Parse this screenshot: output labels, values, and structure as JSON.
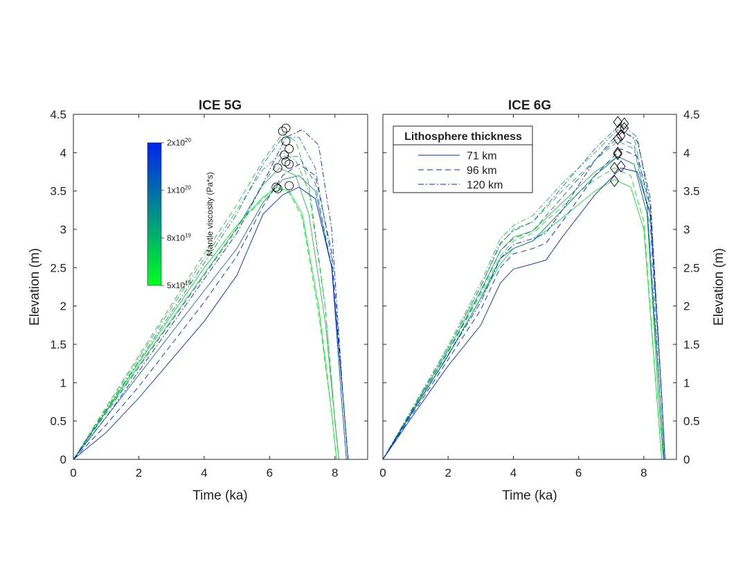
{
  "chart_data": [
    {
      "type": "line",
      "title": "ICE 5G",
      "xlabel": "Time (ka)",
      "ylabel": "Elevation (m)",
      "xlim": [
        0,
        9
      ],
      "ylim": [
        0,
        4.5
      ],
      "xticks": [
        "0",
        "2",
        "4",
        "6",
        "8"
      ],
      "yticks": [
        "0",
        "0.5",
        "1",
        "1.5",
        "2",
        "2.5",
        "3",
        "3.5",
        "4",
        "4.5"
      ],
      "peak_marker": "circle",
      "colorbar": {
        "label": "Mantle viscosity (Pa*s)",
        "ticks": [
          {
            "base": "2x10",
            "exp": "20"
          },
          {
            "base": "1x10",
            "exp": "20"
          },
          {
            "base": "8x10",
            "exp": "19"
          },
          {
            "base": "5x10",
            "exp": "19"
          }
        ],
        "colors": [
          "#0022ee",
          "#00ff22"
        ]
      },
      "series": [
        {
          "viscosity": "5x10^19",
          "thickness": "71 km",
          "style": "solid",
          "color": "#00ee22",
          "x": [
            0,
            1,
            2,
            3,
            4,
            5,
            5.8,
            6.2,
            6.6,
            7.0,
            7.5,
            7.9,
            8.05
          ],
          "y": [
            0,
            0.63,
            1.26,
            1.88,
            2.5,
            3.05,
            3.42,
            3.55,
            3.5,
            3.2,
            2.0,
            0.6,
            0
          ]
        },
        {
          "viscosity": "5x10^19",
          "thickness": "96 km",
          "style": "dashed",
          "color": "#00ee22",
          "x": [
            0,
            1,
            2,
            3,
            4,
            5,
            5.8,
            6.2,
            6.6,
            7.0,
            7.5,
            7.9,
            8.05
          ],
          "y": [
            0,
            0.63,
            1.26,
            1.88,
            2.5,
            3.05,
            3.4,
            3.54,
            3.48,
            3.15,
            1.9,
            0.6,
            0
          ]
        },
        {
          "viscosity": "8x10^19",
          "thickness": "71 km",
          "style": "solid",
          "color": "#22bb44",
          "x": [
            0,
            1,
            2,
            3,
            4,
            5,
            5.8,
            6.3,
            6.8,
            7.2,
            7.7,
            8.0,
            8.12
          ],
          "y": [
            0,
            0.62,
            1.22,
            1.82,
            2.42,
            3.02,
            3.58,
            3.8,
            3.7,
            3.2,
            1.8,
            0.5,
            0
          ]
        },
        {
          "viscosity": "8x10^19",
          "thickness": "120 km",
          "style": "dashdot",
          "color": "#22bb44",
          "x": [
            0,
            1,
            2,
            3,
            4,
            5,
            5.8,
            6.4,
            6.8,
            7.2,
            7.7,
            8.0,
            8.12
          ],
          "y": [
            0,
            0.66,
            1.32,
            1.98,
            2.62,
            3.25,
            3.78,
            4.0,
            3.9,
            3.5,
            2.0,
            0.5,
            0
          ]
        },
        {
          "viscosity": "8x10^19",
          "thickness": "96 km",
          "style": "dashed",
          "color": "#22bb44",
          "x": [
            0,
            1,
            2,
            3,
            4,
            5,
            5.8,
            6.4,
            6.8,
            7.2,
            7.7,
            8.0,
            8.12
          ],
          "y": [
            0,
            0.68,
            1.35,
            2.02,
            2.68,
            3.32,
            3.9,
            4.25,
            4.15,
            3.6,
            2.0,
            0.5,
            0
          ]
        },
        {
          "viscosity": "1x10^20",
          "thickness": "71 km",
          "style": "solid",
          "color": "#11778c",
          "x": [
            0,
            1,
            2,
            3,
            4,
            5,
            5.8,
            6.4,
            6.9,
            7.4,
            7.9,
            8.2,
            8.35
          ],
          "y": [
            0,
            0.55,
            1.1,
            1.65,
            2.2,
            2.75,
            3.35,
            3.65,
            3.7,
            3.5,
            2.5,
            0.8,
            0
          ]
        },
        {
          "viscosity": "1x10^20",
          "thickness": "96 km",
          "style": "dashed",
          "color": "#11778c",
          "x": [
            0,
            1,
            2,
            3,
            4,
            5,
            5.8,
            6.4,
            6.9,
            7.4,
            7.9,
            8.2,
            8.35
          ],
          "y": [
            0,
            0.6,
            1.2,
            1.8,
            2.4,
            3.0,
            3.6,
            3.95,
            3.95,
            3.6,
            2.5,
            0.8,
            0
          ]
        },
        {
          "viscosity": "1x10^20",
          "thickness": "120 km",
          "style": "dashdot",
          "color": "#11778c",
          "x": [
            0,
            1,
            2,
            3,
            4,
            5,
            5.8,
            6.4,
            6.9,
            7.4,
            7.9,
            8.2,
            8.35
          ],
          "y": [
            0,
            0.64,
            1.28,
            1.92,
            2.56,
            3.2,
            3.85,
            4.2,
            4.2,
            3.8,
            2.6,
            0.8,
            0
          ]
        },
        {
          "viscosity": "2x10^20",
          "thickness": "71 km",
          "style": "solid",
          "color": "#0022ee",
          "x": [
            0,
            1,
            2,
            3,
            4,
            5,
            5.8,
            6.4,
            6.9,
            7.4,
            7.9,
            8.25,
            8.4
          ],
          "y": [
            0,
            0.35,
            0.8,
            1.3,
            1.8,
            2.4,
            3.2,
            3.45,
            3.55,
            3.4,
            2.5,
            0.8,
            0
          ]
        },
        {
          "viscosity": "2x10^20",
          "thickness": "96 km",
          "style": "dashed",
          "color": "#0022ee",
          "x": [
            0,
            1,
            2,
            3,
            4,
            5,
            5.8,
            6.4,
            6.9,
            7.4,
            7.9,
            8.25,
            8.4
          ],
          "y": [
            0,
            0.45,
            0.95,
            1.5,
            2.05,
            2.65,
            3.3,
            3.7,
            3.85,
            3.7,
            2.7,
            0.8,
            0
          ]
        },
        {
          "viscosity": "2x10^20",
          "thickness": "120 km",
          "style": "dashdot",
          "color": "#0022ee",
          "x": [
            0,
            1,
            2,
            3,
            4,
            5,
            5.8,
            6.5,
            7.0,
            7.5,
            7.9,
            8.25,
            8.4
          ],
          "y": [
            0,
            0.55,
            1.15,
            1.75,
            2.35,
            2.95,
            3.6,
            4.2,
            4.3,
            4.1,
            3.0,
            0.8,
            0
          ]
        }
      ],
      "peaks": [
        {
          "x": 6.2,
          "y": 3.55
        },
        {
          "x": 6.25,
          "y": 3.53
        },
        {
          "x": 6.6,
          "y": 3.57
        },
        {
          "x": 6.25,
          "y": 3.8
        },
        {
          "x": 6.5,
          "y": 3.88
        },
        {
          "x": 6.6,
          "y": 3.85
        },
        {
          "x": 6.45,
          "y": 3.97
        },
        {
          "x": 6.6,
          "y": 4.05
        },
        {
          "x": 6.5,
          "y": 4.15
        },
        {
          "x": 6.4,
          "y": 4.28
        },
        {
          "x": 6.5,
          "y": 4.32
        }
      ]
    },
    {
      "type": "line",
      "title": "ICE 6G",
      "xlabel": "Time (ka)",
      "ylabel": "Elevation (m)",
      "xlim": [
        0,
        9
      ],
      "ylim": [
        0,
        4.5
      ],
      "xticks": [
        "0",
        "2",
        "4",
        "6",
        "8"
      ],
      "yticks": [
        "0",
        "0.5",
        "1",
        "1.5",
        "2",
        "2.5",
        "3",
        "3.5",
        "4",
        "4.5"
      ],
      "peak_marker": "diamond",
      "legend": {
        "title": "Lithosphere thickness",
        "placement": "top-left",
        "entries": [
          {
            "label": "71 km",
            "style": "solid"
          },
          {
            "label": "96 km",
            "style": "dashed"
          },
          {
            "label": "120 km",
            "style": "dashdot"
          }
        ]
      },
      "series": [
        {
          "viscosity": "5x10^19",
          "thickness": "71 km",
          "style": "solid",
          "color": "#00ee22",
          "x": [
            0,
            1,
            2,
            3,
            3.6,
            4.0,
            4.6,
            5.5,
            6.5,
            7.1,
            7.6,
            8.0,
            8.4,
            8.55
          ],
          "y": [
            0,
            0.68,
            1.35,
            2.1,
            2.55,
            2.75,
            2.85,
            3.15,
            3.5,
            3.65,
            3.55,
            3.0,
            0.8,
            0
          ]
        },
        {
          "viscosity": "5x10^19",
          "thickness": "96 km",
          "style": "dashed",
          "color": "#00ee22",
          "x": [
            0,
            1,
            2,
            3,
            3.6,
            4.0,
            4.6,
            5.5,
            6.5,
            7.1,
            7.6,
            8.0,
            8.4,
            8.55
          ],
          "y": [
            0,
            0.7,
            1.4,
            2.15,
            2.65,
            2.85,
            2.95,
            3.3,
            3.65,
            3.8,
            3.7,
            3.1,
            0.8,
            0
          ]
        },
        {
          "viscosity": "8x10^19",
          "thickness": "71 km",
          "style": "solid",
          "color": "#22bb44",
          "x": [
            0,
            1,
            2,
            3,
            3.6,
            4.0,
            4.6,
            5.5,
            6.5,
            7.2,
            7.7,
            8.1,
            8.45,
            8.6
          ],
          "y": [
            0,
            0.7,
            1.42,
            2.2,
            2.72,
            2.9,
            2.98,
            3.35,
            3.75,
            3.95,
            3.85,
            3.2,
            0.8,
            0
          ]
        },
        {
          "viscosity": "8x10^19",
          "thickness": "96 km",
          "style": "dashed",
          "color": "#22bb44",
          "x": [
            0,
            1,
            2,
            3,
            3.6,
            4.0,
            4.6,
            5.5,
            6.5,
            7.2,
            7.7,
            8.1,
            8.45,
            8.6
          ],
          "y": [
            0,
            0.72,
            1.45,
            2.25,
            2.8,
            3.0,
            3.1,
            3.5,
            3.9,
            4.15,
            4.05,
            3.3,
            0.8,
            0
          ]
        },
        {
          "viscosity": "8x10^19",
          "thickness": "120 km",
          "style": "dashdot",
          "color": "#22bb44",
          "x": [
            0,
            1,
            2,
            3,
            3.6,
            4.0,
            4.6,
            5.5,
            6.5,
            7.2,
            7.7,
            8.1,
            8.45,
            8.6
          ],
          "y": [
            0,
            0.74,
            1.48,
            2.3,
            2.88,
            3.05,
            3.18,
            3.6,
            4.0,
            4.3,
            4.2,
            3.4,
            0.8,
            0
          ]
        },
        {
          "viscosity": "1x10^20",
          "thickness": "71 km",
          "style": "solid",
          "color": "#11778c",
          "x": [
            0,
            1,
            2,
            3,
            3.6,
            4.0,
            4.6,
            5.5,
            6.5,
            7.2,
            7.7,
            8.1,
            8.5,
            8.62
          ],
          "y": [
            0,
            0.68,
            1.36,
            2.1,
            2.62,
            2.75,
            2.85,
            3.25,
            3.7,
            3.95,
            3.85,
            3.2,
            0.8,
            0
          ]
        },
        {
          "viscosity": "1x10^20",
          "thickness": "96 km",
          "style": "dashed",
          "color": "#11778c",
          "x": [
            0,
            1,
            2,
            3,
            3.6,
            4.0,
            4.6,
            5.5,
            6.5,
            7.2,
            7.7,
            8.1,
            8.5,
            8.62
          ],
          "y": [
            0,
            0.7,
            1.4,
            2.18,
            2.72,
            2.88,
            2.98,
            3.42,
            3.9,
            4.2,
            4.1,
            3.3,
            0.8,
            0
          ]
        },
        {
          "viscosity": "1x10^20",
          "thickness": "120 km",
          "style": "dashdot",
          "color": "#11778c",
          "x": [
            0,
            1,
            2,
            3,
            3.6,
            4.0,
            4.6,
            5.5,
            6.5,
            7.3,
            7.8,
            8.15,
            8.5,
            8.62
          ],
          "y": [
            0,
            0.72,
            1.45,
            2.25,
            2.82,
            2.98,
            3.1,
            3.55,
            4.05,
            4.38,
            4.2,
            3.4,
            0.8,
            0
          ]
        },
        {
          "viscosity": "2x10^20",
          "thickness": "71 km",
          "style": "solid",
          "color": "#0022ee",
          "x": [
            0,
            1,
            2,
            3,
            3.6,
            4.0,
            4.6,
            5.0,
            5.5,
            6.5,
            7.3,
            7.8,
            8.2,
            8.55,
            8.65
          ],
          "y": [
            0,
            0.62,
            1.22,
            1.75,
            2.3,
            2.48,
            2.55,
            2.6,
            2.9,
            3.45,
            3.8,
            3.75,
            3.2,
            0.8,
            0
          ]
        },
        {
          "viscosity": "2x10^20",
          "thickness": "96 km",
          "style": "dashed",
          "color": "#0022ee",
          "x": [
            0,
            1,
            2,
            3,
            3.6,
            4.0,
            4.6,
            5.0,
            5.5,
            6.5,
            7.3,
            7.8,
            8.2,
            8.55,
            8.65
          ],
          "y": [
            0,
            0.65,
            1.3,
            1.95,
            2.5,
            2.68,
            2.75,
            2.82,
            3.1,
            3.7,
            4.05,
            3.95,
            3.3,
            0.8,
            0
          ]
        },
        {
          "viscosity": "2x10^20",
          "thickness": "120 km",
          "style": "dashdot",
          "color": "#0022ee",
          "x": [
            0,
            1,
            2,
            3,
            3.6,
            4.0,
            4.6,
            5.0,
            5.5,
            6.5,
            7.3,
            7.8,
            8.2,
            8.55,
            8.65
          ],
          "y": [
            0,
            0.68,
            1.36,
            2.05,
            2.62,
            2.8,
            2.88,
            2.95,
            3.25,
            3.9,
            4.3,
            4.15,
            3.4,
            0.8,
            0
          ]
        }
      ],
      "peaks": [
        {
          "x": 7.1,
          "y": 3.63
        },
        {
          "x": 7.1,
          "y": 3.8
        },
        {
          "x": 7.3,
          "y": 3.82
        },
        {
          "x": 7.2,
          "y": 3.98
        },
        {
          "x": 7.2,
          "y": 4.0
        },
        {
          "x": 7.2,
          "y": 4.18
        },
        {
          "x": 7.3,
          "y": 4.22
        },
        {
          "x": 7.25,
          "y": 4.3
        },
        {
          "x": 7.4,
          "y": 4.32
        },
        {
          "x": 7.2,
          "y": 4.4
        },
        {
          "x": 7.4,
          "y": 4.38
        }
      ]
    }
  ]
}
